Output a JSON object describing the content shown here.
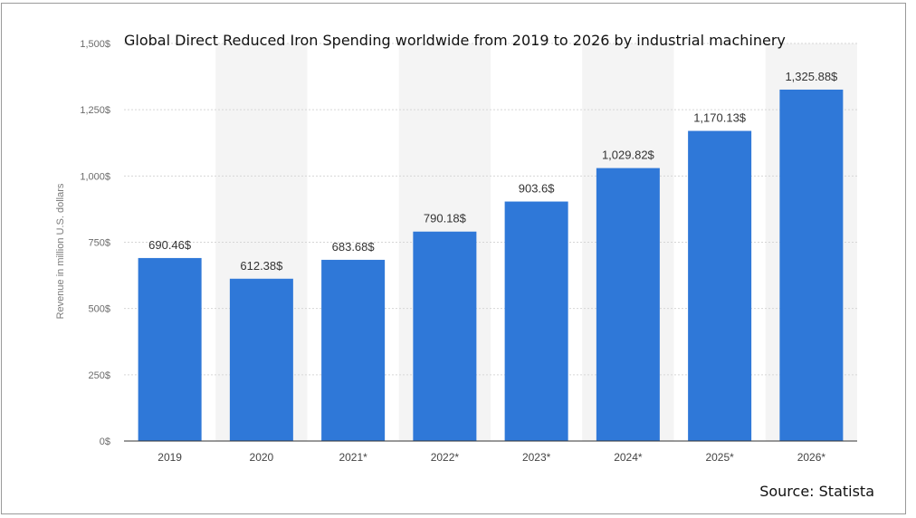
{
  "chart_data": {
    "type": "bar",
    "title": "Global Direct Reduced Iron Spending worldwide from 2019 to 2026 by industrial machinery",
    "ylabel": "Revenue in million U.S. dollars",
    "xlabel": "",
    "categories": [
      "2019",
      "2020",
      "2021*",
      "2022*",
      "2023*",
      "2024*",
      "2025*",
      "2026*"
    ],
    "values": [
      690.46,
      612.38,
      683.68,
      790.18,
      903.6,
      1029.82,
      1170.13,
      1325.88
    ],
    "data_labels": [
      "690.46$",
      "612.38$",
      "683.68$",
      "790.18$",
      "903.6$",
      "1,029.82$",
      "1,170.13$",
      "1,325.88$"
    ],
    "ylim": [
      0,
      1500
    ],
    "yticks": [
      {
        "value": 0,
        "label": "0$"
      },
      {
        "value": 250,
        "label": "250$"
      },
      {
        "value": 500,
        "label": "500$"
      },
      {
        "value": 750,
        "label": "750$"
      },
      {
        "value": 1000,
        "label": "1,000$"
      },
      {
        "value": 1250,
        "label": "1,250$"
      },
      {
        "value": 1500,
        "label": "1,500$"
      }
    ],
    "grid": "horizontal",
    "bar_color": "#2f78d8",
    "band_color": "#f4f4f4"
  },
  "source": "Source: Statista"
}
